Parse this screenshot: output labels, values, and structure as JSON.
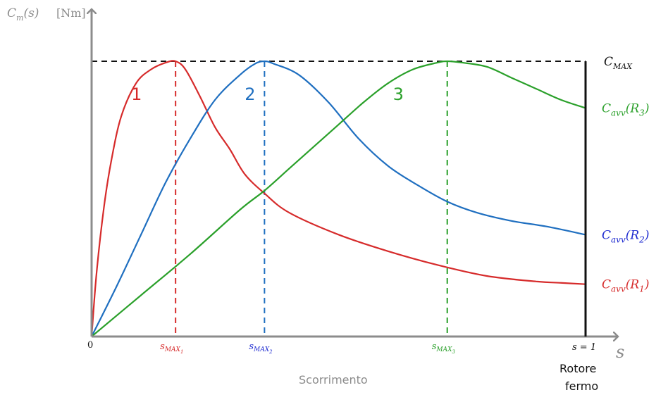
{
  "chart_data": {
    "type": "line",
    "y_axis_label": {
      "symbol": "C",
      "sub": "m",
      "arg": "(s)",
      "unit": "[Nm]"
    },
    "x_axis_symbol": "s",
    "x_caption": "Scorrimento",
    "stopped_rotor_label": [
      "Rotore",
      "fermo"
    ],
    "origin_label": "0",
    "s_end_label": "s = 1",
    "cmax_label": {
      "symbol": "C",
      "sub": "MAX"
    },
    "xlim": [
      0,
      1
    ],
    "ylim": [
      0,
      1
    ],
    "colors": {
      "axis": "#8c8c8c",
      "red": "#d62b2b",
      "blue": "#1f6fc0",
      "green": "#2aa02a",
      "label_blue": "#1d2ad0",
      "black": "#111111"
    },
    "series": [
      {
        "id": "1",
        "name": "1",
        "color": "#d62b2b",
        "s_max": 0.17,
        "s_max_label": {
          "symbol": "s",
          "sub": "MAX",
          "subsub": "1"
        },
        "end_label": {
          "symbol": "C",
          "sub": "avv",
          "arg": "R",
          "arg_sub": "1"
        },
        "x": [
          0,
          0.01,
          0.025,
          0.04,
          0.06,
          0.09,
          0.12,
          0.15,
          0.17,
          0.19,
          0.22,
          0.25,
          0.28,
          0.31,
          0.35,
          0.4,
          0.5,
          0.6,
          0.7,
          0.8,
          0.9,
          0.95,
          1.0
        ],
        "y": [
          0,
          0.23,
          0.47,
          0.64,
          0.8,
          0.92,
          0.97,
          0.995,
          1.0,
          0.97,
          0.87,
          0.76,
          0.68,
          0.59,
          0.52,
          0.45,
          0.37,
          0.31,
          0.26,
          0.22,
          0.2,
          0.195,
          0.19
        ]
      },
      {
        "id": "2",
        "name": "2",
        "color": "#1f6fc0",
        "s_max": 0.35,
        "s_max_label": {
          "symbol": "s",
          "sub": "MAX",
          "subsub": "2"
        },
        "end_label": {
          "symbol": "C",
          "sub": "avv",
          "arg": "R",
          "arg_sub": "2"
        },
        "x": [
          0,
          0.05,
          0.1,
          0.15,
          0.2,
          0.25,
          0.3,
          0.33,
          0.35,
          0.37,
          0.42,
          0.48,
          0.54,
          0.6,
          0.66,
          0.72,
          0.78,
          0.85,
          0.92,
          1.0
        ],
        "y": [
          0,
          0.18,
          0.37,
          0.56,
          0.72,
          0.86,
          0.95,
          0.99,
          1.0,
          0.99,
          0.95,
          0.85,
          0.72,
          0.62,
          0.55,
          0.49,
          0.45,
          0.42,
          0.4,
          0.37
        ]
      },
      {
        "id": "3",
        "name": "3",
        "color": "#2aa02a",
        "s_max": 0.72,
        "s_max_label": {
          "symbol": "s",
          "sub": "MAX",
          "subsub": "3"
        },
        "end_label": {
          "symbol": "C",
          "sub": "avv",
          "arg": "R",
          "arg_sub": "3"
        },
        "x": [
          0,
          0.1,
          0.2,
          0.3,
          0.35,
          0.4,
          0.45,
          0.5,
          0.55,
          0.6,
          0.65,
          0.7,
          0.72,
          0.75,
          0.8,
          0.85,
          0.9,
          0.95,
          1.0
        ],
        "y": [
          0,
          0.15,
          0.3,
          0.46,
          0.53,
          0.61,
          0.69,
          0.77,
          0.85,
          0.92,
          0.97,
          0.995,
          1.0,
          0.995,
          0.98,
          0.94,
          0.9,
          0.86,
          0.83
        ]
      }
    ]
  }
}
